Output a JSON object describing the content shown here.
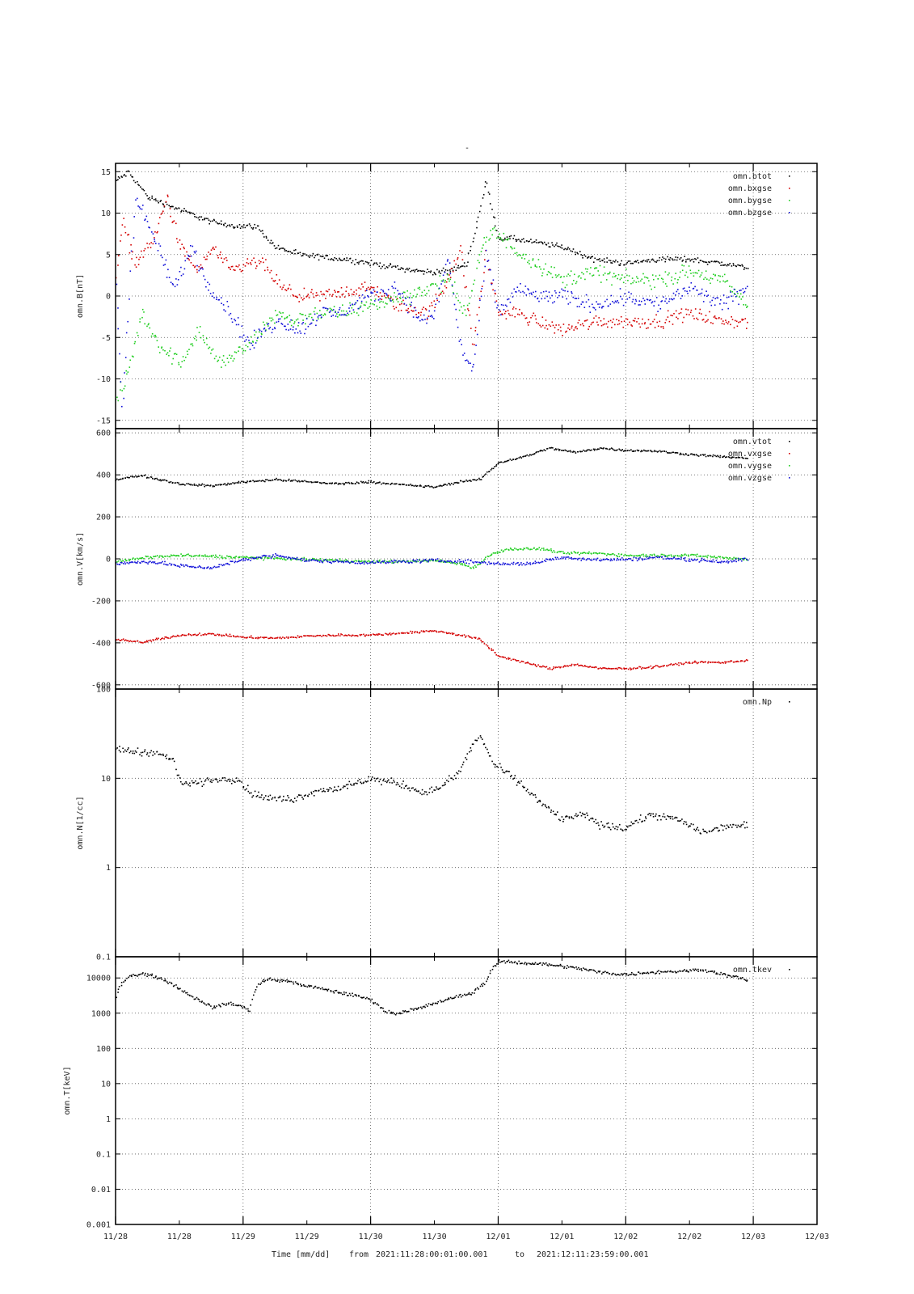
{
  "figure": {
    "top_mark": "-",
    "footer": {
      "time_label": "Time [mm/dd]",
      "from_label": "from",
      "from_value": "2021:11:28:00:01:00.001",
      "to_label": "to",
      "to_value": "2021:12:11:23:59:00.001"
    },
    "x_tick_labels": [
      "11/28",
      "11/28",
      "11/29",
      "11/29",
      "11/30",
      "11/30",
      "12/01",
      "12/01",
      "12/02",
      "12/02",
      "12/03",
      "12/03"
    ],
    "x_range_days": [
      0,
      5.5
    ],
    "grid": true,
    "legend_position": "top-right"
  },
  "colors": {
    "black": "#000000",
    "red": "#d40000",
    "green": "#1fce1f",
    "blue": "#1010d8"
  },
  "chart_data": [
    {
      "type": "scatter",
      "panel": "B",
      "ylabel": "omn.B[nT]",
      "yscale": "linear",
      "ylim": [
        -16,
        16
      ],
      "yticks": [
        -15,
        -10,
        -5,
        0,
        5,
        10,
        15
      ],
      "ytick_labels": [
        "-15",
        "-10",
        "-5",
        "0",
        "5",
        "10",
        "15"
      ],
      "grid": true,
      "legend": "top-right",
      "series": [
        {
          "name": "omn.btot",
          "color": "black",
          "noise": 0.5,
          "x": [
            0.0,
            0.1,
            0.25,
            0.5,
            0.75,
            0.95,
            1.1,
            1.25,
            1.45,
            1.8,
            2.0,
            2.2,
            2.4,
            2.6,
            2.75,
            2.85,
            2.9,
            3.0,
            3.1,
            3.3,
            3.5,
            3.75,
            4.0,
            4.25,
            4.5,
            4.75,
            4.95
          ],
          "y": [
            14,
            15,
            12,
            10.5,
            9,
            8.5,
            8.5,
            6,
            5,
            4.5,
            4,
            3.5,
            3,
            3,
            4,
            10,
            14,
            7,
            7,
            6.5,
            6,
            4.5,
            4,
            4.5,
            4.5,
            4,
            3.5
          ]
        },
        {
          "name": "omn.bxgse",
          "color": "red",
          "noise": 1.2,
          "x": [
            0.0,
            0.05,
            0.15,
            0.3,
            0.4,
            0.5,
            0.65,
            0.75,
            0.9,
            1.05,
            1.15,
            1.3,
            1.45,
            1.6,
            1.75,
            2.0,
            2.2,
            2.45,
            2.6,
            2.7,
            2.8,
            2.9,
            3.0,
            3.15,
            3.3,
            3.5,
            3.75,
            4.0,
            4.25,
            4.5,
            4.75,
            4.95
          ],
          "y": [
            3,
            9,
            4,
            7,
            12,
            6,
            3,
            6,
            3,
            4,
            4,
            1,
            0,
            0,
            0.5,
            1,
            -1,
            -2,
            2,
            6,
            -6,
            5,
            -2,
            -2,
            -3,
            -4,
            -3,
            -3,
            -3,
            -2,
            -3,
            -3
          ]
        },
        {
          "name": "omn.bygse",
          "color": "green",
          "noise": 1.4,
          "x": [
            0.0,
            0.1,
            0.2,
            0.35,
            0.5,
            0.65,
            0.8,
            0.95,
            1.1,
            1.25,
            1.4,
            1.55,
            1.75,
            2.0,
            2.25,
            2.45,
            2.6,
            2.75,
            2.85,
            2.95,
            3.1,
            3.3,
            3.5,
            3.75,
            4.0,
            4.25,
            4.5,
            4.75,
            4.95
          ],
          "y": [
            -13,
            -9,
            -2,
            -6,
            -8,
            -4,
            -8,
            -7,
            -5,
            -2,
            -3,
            -2,
            -2,
            -1,
            0,
            1,
            2,
            -2,
            5,
            8,
            6,
            4,
            2,
            3,
            2,
            2,
            3,
            2,
            -1
          ]
        },
        {
          "name": "omn.bzgse",
          "color": "blue",
          "noise": 1.4,
          "x": [
            0.0,
            0.05,
            0.15,
            0.3,
            0.45,
            0.6,
            0.7,
            0.8,
            0.9,
            1.05,
            1.15,
            1.3,
            1.45,
            1.6,
            1.75,
            2.0,
            2.2,
            2.4,
            2.5,
            2.6,
            2.7,
            2.8,
            2.9,
            3.0,
            3.15,
            3.3,
            3.5,
            3.75,
            4.0,
            4.25,
            4.5,
            4.75,
            4.95
          ],
          "y": [
            2,
            -14,
            12,
            7,
            1,
            6,
            2,
            0,
            -2,
            -6,
            -4,
            -3,
            -4,
            -2,
            -2,
            0,
            1,
            -3,
            -2,
            5,
            -6,
            -9,
            5,
            -2,
            1,
            0,
            0,
            -1,
            0,
            -1,
            1,
            -1,
            1
          ]
        }
      ]
    },
    {
      "type": "scatter",
      "panel": "V",
      "ylabel": "omn.V[km/s]",
      "yscale": "linear",
      "ylim": [
        -620,
        620
      ],
      "yticks": [
        -600,
        -400,
        -200,
        0,
        200,
        400,
        600
      ],
      "ytick_labels": [
        "-600",
        "-400",
        "-200",
        "0",
        "200",
        "400",
        "600"
      ],
      "grid": true,
      "legend": "top-right",
      "series": [
        {
          "name": "omn.vtot",
          "color": "black",
          "noise": 8,
          "x": [
            0.0,
            0.2,
            0.5,
            0.75,
            1.0,
            1.25,
            1.5,
            1.75,
            2.0,
            2.25,
            2.5,
            2.7,
            2.85,
            3.0,
            3.2,
            3.4,
            3.6,
            3.8,
            4.0,
            4.25,
            4.5,
            4.75,
            4.95
          ],
          "y": [
            380,
            400,
            360,
            350,
            370,
            380,
            370,
            360,
            370,
            355,
            345,
            370,
            380,
            460,
            490,
            530,
            510,
            530,
            520,
            515,
            500,
            490,
            480
          ]
        },
        {
          "name": "omn.vxgse",
          "color": "red",
          "noise": 8,
          "x": [
            0.0,
            0.2,
            0.5,
            0.75,
            1.0,
            1.25,
            1.5,
            1.75,
            2.0,
            2.25,
            2.5,
            2.7,
            2.85,
            3.0,
            3.2,
            3.4,
            3.6,
            3.8,
            4.0,
            4.25,
            4.5,
            4.75,
            4.95
          ],
          "y": [
            -380,
            -395,
            -360,
            -355,
            -370,
            -375,
            -365,
            -360,
            -360,
            -350,
            -340,
            -360,
            -380,
            -460,
            -490,
            -520,
            -500,
            -520,
            -520,
            -510,
            -490,
            -490,
            -480
          ]
        },
        {
          "name": "omn.vygse",
          "color": "green",
          "noise": 10,
          "x": [
            0.0,
            0.25,
            0.5,
            0.75,
            1.0,
            1.25,
            1.5,
            1.75,
            2.0,
            2.25,
            2.5,
            2.7,
            2.8,
            2.95,
            3.1,
            3.35,
            3.5,
            3.75,
            4.0,
            4.25,
            4.5,
            4.75,
            4.95
          ],
          "y": [
            -10,
            10,
            20,
            15,
            10,
            5,
            0,
            -5,
            -10,
            -10,
            -5,
            -20,
            -40,
            30,
            50,
            50,
            30,
            30,
            20,
            20,
            20,
            10,
            0
          ]
        },
        {
          "name": "omn.vzgse",
          "color": "blue",
          "noise": 12,
          "x": [
            0.0,
            0.25,
            0.5,
            0.75,
            1.0,
            1.25,
            1.5,
            1.75,
            2.0,
            2.25,
            2.5,
            2.75,
            3.0,
            3.25,
            3.5,
            3.75,
            4.0,
            4.25,
            4.5,
            4.75,
            4.95
          ],
          "y": [
            -20,
            -10,
            -30,
            -40,
            0,
            20,
            -5,
            -10,
            -15,
            -10,
            -5,
            -10,
            -20,
            -20,
            10,
            0,
            0,
            10,
            0,
            -10,
            0
          ]
        }
      ]
    },
    {
      "type": "scatter",
      "panel": "N",
      "ylabel": "omn.N[1/cc]",
      "yscale": "log",
      "ylim": [
        0.1,
        100
      ],
      "yticks": [
        0.1,
        1,
        10,
        100
      ],
      "ytick_labels": [
        "0.1",
        "1",
        "10",
        "100"
      ],
      "grid": true,
      "legend": "top-right",
      "series": [
        {
          "name": "omn.Np",
          "color": "black",
          "noise_log": 0.06,
          "x": [
            0.0,
            0.15,
            0.3,
            0.45,
            0.5,
            0.65,
            0.8,
            0.95,
            1.05,
            1.2,
            1.4,
            1.6,
            1.8,
            2.0,
            2.2,
            2.4,
            2.55,
            2.7,
            2.85,
            2.95,
            3.05,
            3.2,
            3.35,
            3.5,
            3.65,
            3.8,
            4.0,
            4.2,
            4.4,
            4.6,
            4.8,
            4.95
          ],
          "y": [
            22,
            20,
            20,
            16,
            9,
            9,
            10,
            10,
            7,
            6,
            6,
            7.5,
            8,
            10,
            9,
            7,
            8,
            12,
            30,
            15,
            12,
            8,
            5,
            3.5,
            4,
            3,
            2.8,
            4,
            3.5,
            2.5,
            3,
            3
          ]
        }
      ]
    },
    {
      "type": "scatter",
      "panel": "T",
      "ylabel": "omn.T[keV]",
      "yscale": "log",
      "ylim": [
        0.001,
        40000
      ],
      "yticks": [
        0.001,
        0.01,
        0.1,
        1,
        10,
        100,
        1000,
        10000
      ],
      "ytick_labels": [
        "0.001",
        "0.01",
        "0.1",
        "1",
        "10",
        "100",
        "1000",
        "10000"
      ],
      "grid": true,
      "legend": "top-right",
      "series": [
        {
          "name": "omn.tkev",
          "color": "black",
          "noise_log": 0.07,
          "x": [
            0.0,
            0.1,
            0.2,
            0.35,
            0.5,
            0.6,
            0.75,
            0.9,
            1.0,
            1.05,
            1.15,
            1.3,
            1.5,
            1.75,
            2.0,
            2.1,
            2.2,
            2.4,
            2.6,
            2.8,
            2.9,
            3.0,
            3.2,
            3.4,
            3.6,
            3.8,
            4.0,
            4.2,
            4.4,
            4.6,
            4.8,
            4.95
          ],
          "y": [
            3000,
            12000,
            14000,
            10000,
            5000,
            3000,
            1500,
            2000,
            1500,
            1200,
            9000,
            9000,
            6000,
            4000,
            2500,
            1200,
            1000,
            1500,
            2500,
            4000,
            8000,
            30000,
            28000,
            25000,
            20000,
            15000,
            13000,
            15000,
            16000,
            18000,
            12000,
            9000
          ]
        }
      ]
    }
  ]
}
